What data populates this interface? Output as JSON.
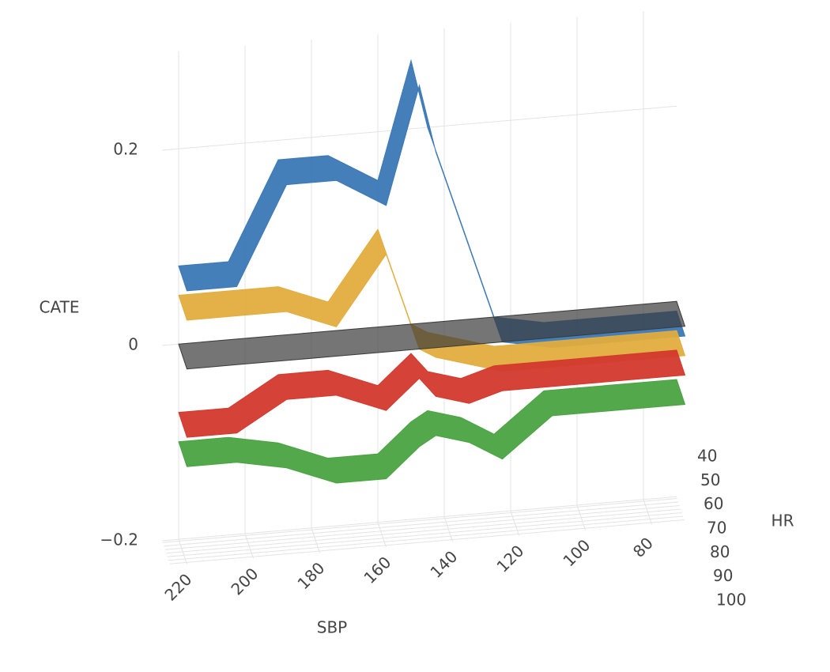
{
  "chart_data": {
    "type": "surface3d",
    "x_title": "SBP",
    "y_title": "HR",
    "z_title": "CATE",
    "x": [
      220,
      205,
      190,
      175,
      160,
      150,
      145,
      135,
      125,
      110,
      95,
      80,
      70
    ],
    "xlim": [
      70,
      225
    ],
    "xticks": [
      220,
      200,
      180,
      160,
      140,
      120,
      100,
      80
    ],
    "ylim": [
      35,
      105
    ],
    "yticks": [
      40,
      50,
      60,
      70,
      80,
      90,
      100
    ],
    "zlim": [
      -0.2,
      0.3
    ],
    "zticks": [
      {
        "value": -0.2,
        "label": "−0.2"
      },
      0,
      0.2
    ],
    "series": [
      {
        "color": "#3b78b6",
        "values": [
          0.08,
          0.08,
          0.18,
          0.18,
          0.15,
          0.27,
          0.2,
          0.1,
          0.0,
          -0.01,
          -0.01,
          -0.01,
          -0.01
        ]
      },
      {
        "color": "#e1ad3d",
        "values": [
          0.05,
          0.05,
          0.05,
          0.03,
          0.1,
          0.0,
          -0.01,
          -0.02,
          -0.03,
          -0.03,
          -0.03,
          -0.03,
          -0.03
        ]
      },
      {
        "color": "#3a3a3a",
        "values": [
          0,
          0,
          0,
          0,
          0,
          0,
          0,
          0,
          0,
          0,
          0,
          0,
          0
        ]
      },
      {
        "color": "#d3382d",
        "values": [
          -0.07,
          -0.07,
          -0.04,
          -0.04,
          -0.06,
          -0.03,
          -0.05,
          -0.06,
          -0.05,
          -0.05,
          -0.05,
          -0.05,
          -0.05
        ]
      },
      {
        "color": "#4aa342",
        "values": [
          -0.1,
          -0.1,
          -0.11,
          -0.13,
          -0.13,
          -0.1,
          -0.09,
          -0.1,
          -0.12,
          -0.08,
          -0.08,
          -0.08,
          -0.08
        ]
      }
    ]
  }
}
